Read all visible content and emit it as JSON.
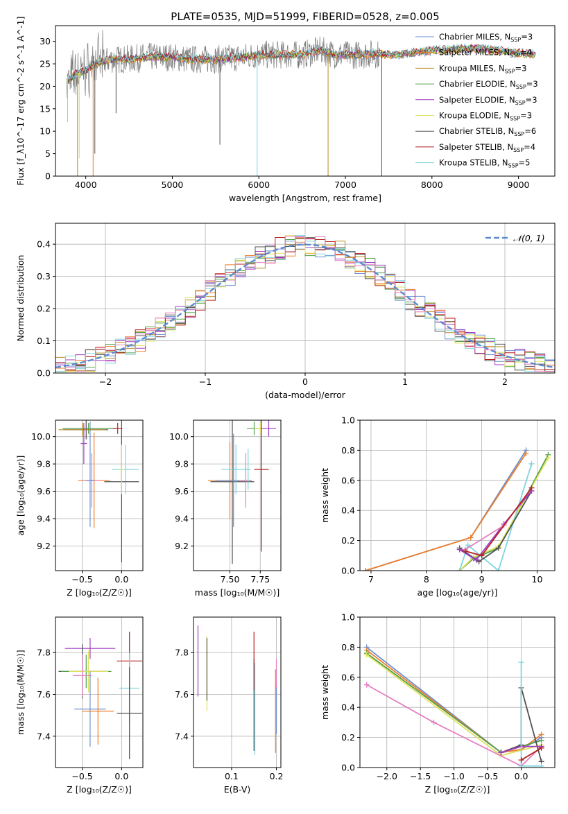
{
  "figure_title": "PLATE=0535, MJD=51999, FIBERID=0528, z=0.005",
  "model_colors": [
    "#6e8fd0",
    "#ef7d28",
    "#b58a25",
    "#52a04a",
    "#a03cc0",
    "#dfe25c",
    "#505050",
    "#b82020",
    "#80d5dd"
  ],
  "extra_color": "#e37fbf",
  "chart_data": [
    {
      "type": "line",
      "title": "PLATE=0535, MJD=51999, FIBERID=0528, z=0.005",
      "xlabel": "wavelength [Angstrom, rest frame]",
      "ylabel": "Flux [f_λ10^-17 erg cm^-2 s^-1 A^-1]",
      "xlim": [
        3650,
        9420
      ],
      "ylim": [
        0,
        33.5
      ],
      "xticks": [
        "4000",
        "5000",
        "6000",
        "7000",
        "8000",
        "9000"
      ],
      "yticks": [
        "0",
        "5",
        "10",
        "15",
        "20",
        "25",
        "30"
      ],
      "legend_position": "top-right",
      "series": [
        {
          "name": "Chabrier MILES, N_SSP=3",
          "imf": "Chabrier",
          "lib": "MILES",
          "n": "3"
        },
        {
          "name": "Salpeter MILES, N_SSP=4",
          "imf": "Salpeter",
          "lib": "MILES",
          "n": "4"
        },
        {
          "name": "Kroupa MILES, N_SSP=3",
          "imf": "Kroupa",
          "lib": "MILES",
          "n": "3"
        },
        {
          "name": "Chabrier ELODIE, N_SSP=3",
          "imf": "Chabrier",
          "lib": "ELODIE",
          "n": "3"
        },
        {
          "name": "Salpeter ELODIE, N_SSP=3",
          "imf": "Salpeter",
          "lib": "ELODIE",
          "n": "3"
        },
        {
          "name": "Kroupa ELODIE, N_SSP=3",
          "imf": "Kroupa",
          "lib": "ELODIE",
          "n": "3"
        },
        {
          "name": "Chabrier STELIB, N_SSP=6",
          "imf": "Chabrier",
          "lib": "STELIB",
          "n": "6"
        },
        {
          "name": "Salpeter STELIB, N_SSP=4",
          "imf": "Salpeter",
          "lib": "STELIB",
          "n": "4"
        },
        {
          "name": "Kroupa STELIB, N_SSP=5",
          "imf": "Kroupa",
          "lib": "STELIB",
          "n": "5"
        }
      ],
      "continuum": [
        [
          3780,
          21
        ],
        [
          3900,
          23
        ],
        [
          4000,
          23.5
        ],
        [
          4100,
          25
        ],
        [
          4300,
          26
        ],
        [
          4500,
          26
        ],
        [
          4700,
          26.5
        ],
        [
          5000,
          26.5
        ],
        [
          5200,
          26
        ],
        [
          5500,
          26
        ],
        [
          5800,
          26.5
        ],
        [
          6000,
          27
        ],
        [
          6300,
          27
        ],
        [
          6500,
          27
        ],
        [
          6700,
          28
        ],
        [
          6900,
          27
        ],
        [
          7100,
          27
        ],
        [
          7300,
          27.2
        ],
        [
          7600,
          27
        ],
        [
          8000,
          28
        ],
        [
          8500,
          28.5
        ],
        [
          9000,
          27.5
        ],
        [
          9200,
          27
        ]
      ],
      "dips": [
        {
          "x": 3905,
          "y": 0,
          "color": 2
        },
        {
          "x": 3925,
          "y": 4,
          "color": 5
        },
        {
          "x": 4085,
          "y": 0,
          "color": 1
        },
        {
          "x": 4105,
          "y": 5,
          "color": 6
        },
        {
          "x": 3790,
          "y": 12,
          "color": 8
        },
        {
          "x": 5980,
          "y": 0,
          "color": 8
        },
        {
          "x": 6800,
          "y": 0,
          "color": 2
        },
        {
          "x": 7420,
          "y": 0,
          "color": 7
        },
        {
          "x": 5550,
          "y": 7,
          "color": 6
        },
        {
          "x": 4350,
          "y": 14,
          "color": 6
        }
      ]
    },
    {
      "type": "line",
      "xlabel": "(data-model)/error",
      "ylabel": "Normed distribution",
      "xlim": [
        -2.5,
        2.5
      ],
      "ylim": [
        0,
        0.465
      ],
      "xticks": [
        "−2",
        "−1",
        "0",
        "1",
        "2"
      ],
      "yticks": [
        "0.0",
        "0.1",
        "0.2",
        "0.3",
        "0.4"
      ],
      "legend_label": "𝒩(0, 1)",
      "legend_position": "top-right",
      "grid": true,
      "bin_width": 0.1
    },
    {
      "type": "scatter",
      "xlabel": "Z [log₁₀(Z/Z☉)]",
      "ylabel": "age  [log₁₀(age/yr)]",
      "xlim": [
        -0.84,
        0.27
      ],
      "ylim": [
        9.02,
        10.12
      ],
      "xticks": [
        "−0.5",
        "0.0"
      ],
      "yticks": [
        "9.2",
        "9.4",
        "9.6",
        "9.8",
        "10.0"
      ],
      "grid": true,
      "points": [
        {
          "x": -0.4,
          "y": 10.06,
          "x_err": 0.35,
          "y_err": 0.05,
          "c": 0
        },
        {
          "x": -0.42,
          "y": 10.06,
          "x_err": 0.33,
          "y_err": 0.04,
          "c": 3
        },
        {
          "x": -0.45,
          "y": 10.05,
          "x_err": 0.28,
          "y_err": 0.07,
          "c": 6
        },
        {
          "x": -0.5,
          "y": 10.05,
          "x_err": 0.3,
          "y_err": 0.05,
          "c": 2
        },
        {
          "x": -0.48,
          "y": 9.95,
          "x_err": 0.04,
          "y_err": 0.15,
          "c": 4
        },
        {
          "x": -0.35,
          "y": 9.68,
          "x_err": 0.2,
          "y_err": 0.35,
          "c": 1
        },
        {
          "x": -0.38,
          "y": 9.68,
          "x_err": 0.1,
          "y_err": 0.2,
          "c": 9
        },
        {
          "x": -0.4,
          "y": 9.68,
          "x_err": 0.05,
          "y_err": 0.34,
          "c": 0
        },
        {
          "x": 0.05,
          "y": 9.76,
          "x_err": 0.17,
          "y_err": 0.18,
          "c": 8
        },
        {
          "x": 0.0,
          "y": 9.67,
          "x_err": 0.22,
          "y_err": 0.59,
          "c": 6
        },
        {
          "x": -0.05,
          "y": 10.06,
          "x_err": 0.06,
          "y_err": 0.04,
          "c": 7
        },
        {
          "x": 0.0,
          "y": 9.76,
          "x_err": 0.03,
          "y_err": 0.18,
          "c": 5
        }
      ]
    },
    {
      "type": "scatter",
      "xlabel": "mass [log₁₀(M/M☉)]",
      "ylabel": "",
      "xlim": [
        7.2,
        7.92
      ],
      "ylim": [
        9.02,
        10.12
      ],
      "xticks": [
        "7.50",
        "7.75"
      ],
      "yticks": [
        "9.2",
        "9.4",
        "9.6",
        "9.8",
        "10.0"
      ],
      "grid": true,
      "points": [
        {
          "x": 7.7,
          "y": 10.06,
          "x_err": 0.06,
          "y_err": 0.05,
          "c": 3
        },
        {
          "x": 7.75,
          "y": 10.06,
          "x_err": 0.05,
          "y_err": 0.04,
          "c": 5
        },
        {
          "x": 7.82,
          "y": 10.06,
          "x_err": 0.06,
          "y_err": 0.06,
          "c": 4
        },
        {
          "x": 7.5,
          "y": 9.68,
          "x_err": 0.18,
          "y_err": 0.28,
          "c": 1
        },
        {
          "x": 7.52,
          "y": 9.67,
          "x_err": 0.18,
          "y_err": 0.6,
          "c": 6
        },
        {
          "x": 7.55,
          "y": 9.76,
          "x_err": 0.12,
          "y_err": 0.18,
          "c": 8
        },
        {
          "x": 7.53,
          "y": 9.68,
          "x_err": 0.15,
          "y_err": 0.34,
          "c": 0
        },
        {
          "x": 7.63,
          "y": 9.68,
          "x_err": 0.05,
          "y_err": 0.2,
          "c": 9
        },
        {
          "x": 7.76,
          "y": 9.76,
          "x_err": 0.06,
          "y_err": 0.6,
          "c": 7
        },
        {
          "x": 7.65,
          "y": 9.76,
          "x_err": 0.02,
          "y_err": 0.15,
          "c": 8
        }
      ]
    },
    {
      "type": "line",
      "xlabel": "age  [log₁₀(age/yr)]",
      "ylabel": "mass weight",
      "xlim": [
        6.8,
        10.32
      ],
      "ylim": [
        0,
        1.0
      ],
      "xticks": [
        "7",
        "8",
        "9",
        "10"
      ],
      "yticks": [
        "0.0",
        "0.2",
        "0.4",
        "0.6",
        "0.8",
        "1.0"
      ],
      "grid": true,
      "series": [
        {
          "c": 0,
          "points": [
            [
              6.9,
              0.0
            ],
            [
              8.8,
              0.22
            ],
            [
              9.8,
              0.8
            ]
          ]
        },
        {
          "c": 1,
          "points": [
            [
              6.9,
              0.0
            ],
            [
              8.8,
              0.22
            ],
            [
              9.8,
              0.78
            ]
          ]
        },
        {
          "c": 3,
          "points": [
            [
              8.6,
              0.0
            ],
            [
              8.85,
              0.08
            ],
            [
              9.3,
              0.15
            ],
            [
              10.2,
              0.77
            ]
          ]
        },
        {
          "c": 5,
          "points": [
            [
              8.6,
              0.0
            ],
            [
              8.85,
              0.09
            ],
            [
              9.3,
              0.16
            ],
            [
              10.2,
              0.75
            ]
          ]
        },
        {
          "c": 8,
          "points": [
            [
              8.6,
              0.0
            ],
            [
              8.75,
              0.17
            ],
            [
              9.3,
              0.0
            ],
            [
              9.9,
              0.71
            ]
          ]
        },
        {
          "c": 6,
          "points": [
            [
              8.6,
              0.15
            ],
            [
              8.95,
              0.06
            ],
            [
              9.3,
              0.15
            ],
            [
              9.9,
              0.53
            ]
          ]
        },
        {
          "c": 4,
          "points": [
            [
              8.6,
              0.14
            ],
            [
              8.9,
              0.07
            ],
            [
              9.4,
              0.31
            ],
            [
              9.9,
              0.53
            ]
          ]
        },
        {
          "c": 9,
          "points": [
            [
              8.7,
              0.14
            ],
            [
              9.4,
              0.3
            ],
            [
              9.9,
              0.55
            ]
          ]
        },
        {
          "c": 7,
          "points": [
            [
              8.7,
              0.13
            ],
            [
              9.0,
              0.1
            ],
            [
              9.9,
              0.55
            ]
          ]
        }
      ]
    },
    {
      "type": "scatter",
      "xlabel": "Z [log₁₀(Z/Z☉)]",
      "ylabel": "mass [log₁₀(M/M☉)]",
      "xlim": [
        -0.84,
        0.27
      ],
      "ylim": [
        7.25,
        7.97
      ],
      "xticks": [
        "−0.5",
        "0.0"
      ],
      "yticks": [
        "7.4",
        "7.6",
        "7.8"
      ],
      "grid": true,
      "points": [
        {
          "x": -0.4,
          "y": 7.82,
          "x_err": 0.32,
          "y_err": 0.05,
          "c": 4
        },
        {
          "x": -0.5,
          "y": 7.71,
          "x_err": 0.3,
          "y_err": 0.13,
          "c": 6
        },
        {
          "x": -0.45,
          "y": 7.71,
          "x_err": 0.32,
          "y_err": 0.08,
          "c": 3
        },
        {
          "x": -0.42,
          "y": 7.71,
          "x_err": 0.25,
          "y_err": 0.1,
          "c": 5
        },
        {
          "x": -0.5,
          "y": 7.69,
          "x_err": 0.12,
          "y_err": 0.1,
          "c": 9
        },
        {
          "x": -0.4,
          "y": 7.53,
          "x_err": 0.2,
          "y_err": 0.18,
          "c": 0
        },
        {
          "x": -0.3,
          "y": 7.52,
          "x_err": 0.2,
          "y_err": 0.16,
          "c": 1
        },
        {
          "x": 0.1,
          "y": 7.76,
          "x_err": 0.16,
          "y_err": 0.14,
          "c": 7
        },
        {
          "x": 0.1,
          "y": 7.63,
          "x_err": 0.13,
          "y_err": 0.17,
          "c": 8
        },
        {
          "x": 0.1,
          "y": 7.51,
          "x_err": 0.16,
          "y_err": 0.22,
          "c": 6
        }
      ]
    },
    {
      "type": "scatter",
      "xlabel": "E(B-V)",
      "ylabel": "",
      "xlim": [
        0.015,
        0.21
      ],
      "ylim": [
        7.25,
        7.97
      ],
      "xticks": [
        "0.1",
        "0.2"
      ],
      "yticks": [
        "7.4",
        "7.6",
        "7.8"
      ],
      "grid": true,
      "points": [
        {
          "x": 0.025,
          "y": 7.76,
          "y_err": 0.17,
          "c": 4
        },
        {
          "x": 0.045,
          "y": 7.7,
          "y_err": 0.18,
          "c": 5
        },
        {
          "x": 0.045,
          "y": 7.72,
          "y_err": 0.15,
          "c": 6
        },
        {
          "x": 0.15,
          "y": 7.55,
          "y_err": 0.22,
          "c": 6
        },
        {
          "x": 0.15,
          "y": 7.76,
          "y_err": 0.14,
          "c": 7
        },
        {
          "x": 0.152,
          "y": 7.53,
          "y_err": 0.22,
          "c": 8
        },
        {
          "x": 0.198,
          "y": 7.52,
          "y_err": 0.2,
          "c": 1
        },
        {
          "x": 0.2,
          "y": 7.53,
          "y_err": 0.12,
          "c": 0
        },
        {
          "x": 0.2,
          "y": 7.7,
          "y_err": 0.07,
          "c": 9
        }
      ]
    },
    {
      "type": "line",
      "xlabel": "Z [log₁₀(Z/Z☉)]",
      "ylabel": "mass weight",
      "xlim": [
        -2.4,
        0.5
      ],
      "ylim": [
        0,
        1.0
      ],
      "xticks": [
        "−2.0",
        "−1.5",
        "−1.0",
        "−0.5",
        "0.0"
      ],
      "yticks": [
        "0.0",
        "0.2",
        "0.4",
        "0.6",
        "0.8",
        "1.0"
      ],
      "grid": true,
      "series": [
        {
          "c": 0,
          "points": [
            [
              -2.3,
              0.8
            ],
            [
              -0.3,
              0.1
            ],
            [
              0.0,
              0.12
            ],
            [
              0.3,
              0.2
            ]
          ]
        },
        {
          "c": 1,
          "points": [
            [
              -2.3,
              0.78
            ],
            [
              -0.3,
              0.1
            ],
            [
              0.0,
              0.12
            ],
            [
              0.3,
              0.22
            ]
          ]
        },
        {
          "c": 3,
          "points": [
            [
              -2.3,
              0.76
            ],
            [
              -0.3,
              0.1
            ],
            [
              0.3,
              0.18
            ]
          ]
        },
        {
          "c": 5,
          "points": [
            [
              -2.3,
              0.75
            ],
            [
              -0.3,
              0.08
            ],
            [
              0.3,
              0.15
            ]
          ]
        },
        {
          "c": 9,
          "points": [
            [
              -2.3,
              0.55
            ],
            [
              -1.3,
              0.3
            ],
            [
              0.0,
              0.01
            ],
            [
              0.3,
              0.14
            ]
          ]
        },
        {
          "c": 6,
          "points": [
            [
              -0.3,
              0.1
            ],
            [
              0.0,
              0.15
            ],
            [
              0.0,
              0.53
            ],
            [
              0.3,
              0.04
            ]
          ]
        },
        {
          "c": 4,
          "points": [
            [
              -0.3,
              0.1
            ],
            [
              0.0,
              0.14
            ],
            [
              0.3,
              0.14
            ]
          ]
        },
        {
          "c": 8,
          "points": [
            [
              0.0,
              0.7
            ],
            [
              0.0,
              0.01
            ],
            [
              0.3,
              0.01
            ]
          ]
        },
        {
          "c": 7,
          "points": [
            [
              0.0,
              0.05
            ],
            [
              0.3,
              0.13
            ]
          ]
        }
      ]
    }
  ]
}
